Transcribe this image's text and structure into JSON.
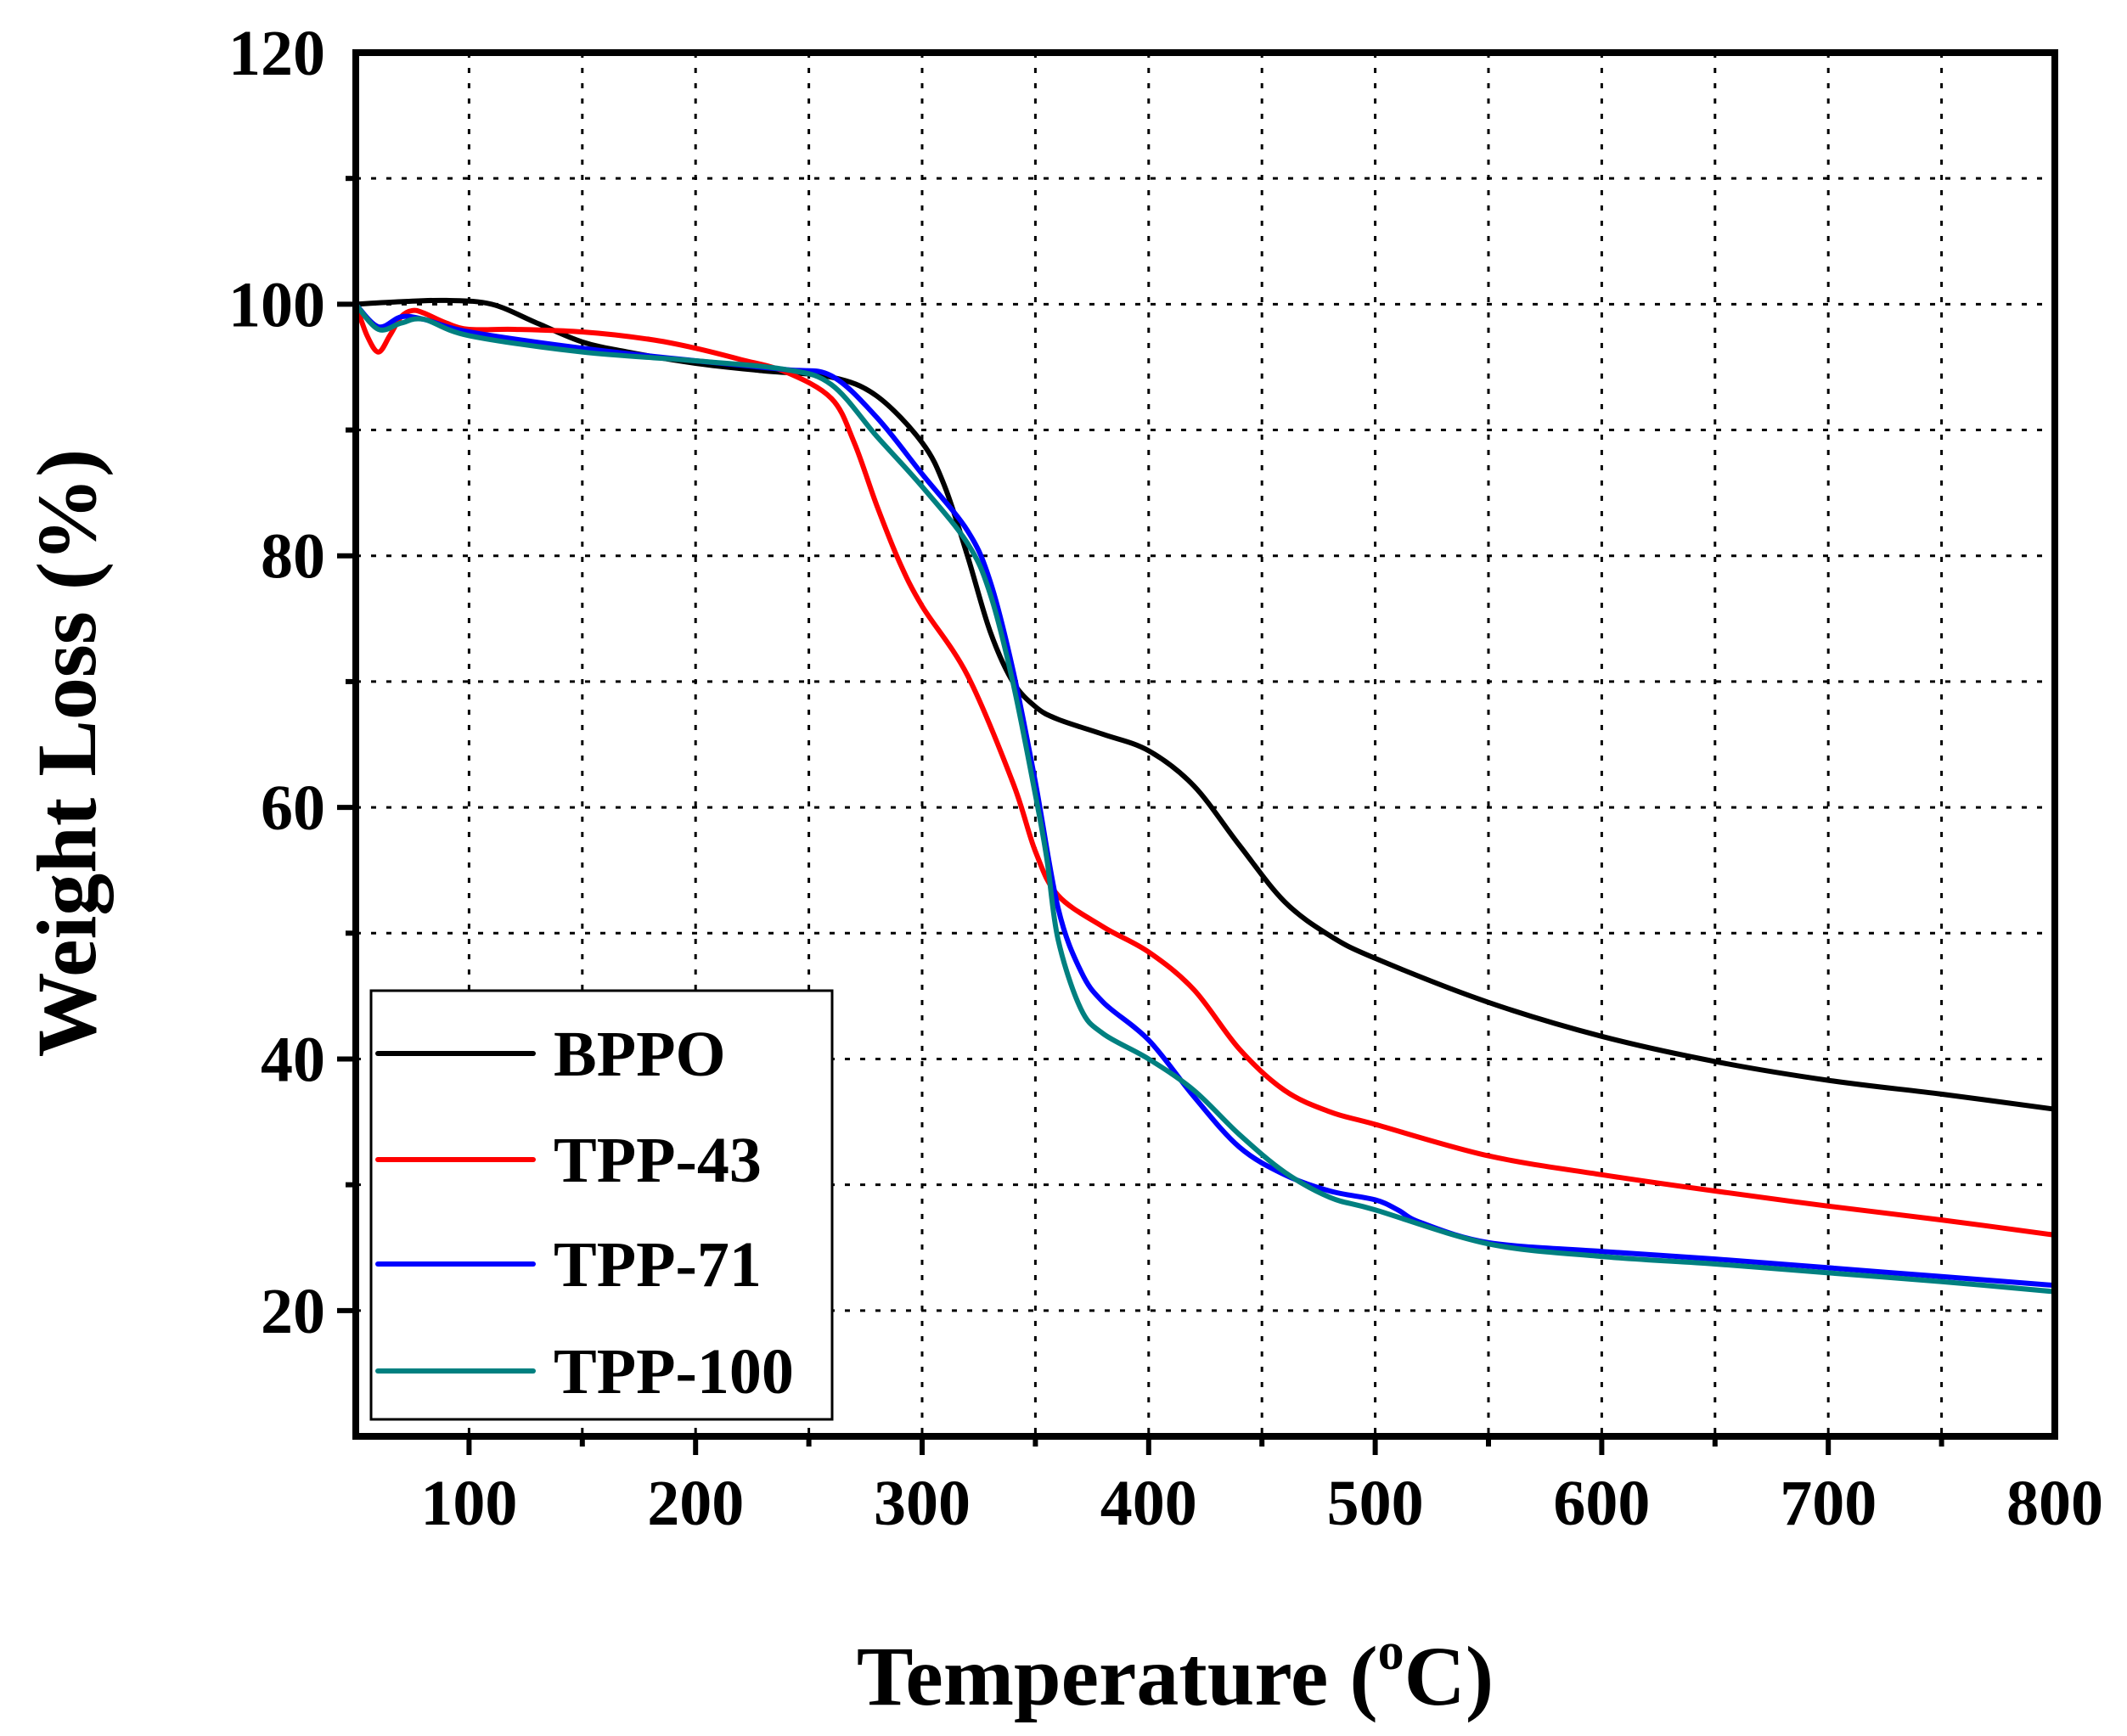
{
  "chart_data": {
    "type": "line",
    "title": "",
    "xlabel": "Temperature (",
    "xlabel_superscript": "o",
    "xlabel_unit": "C)",
    "ylabel": "Weight Loss (%)",
    "xlim": [
      50,
      800
    ],
    "ylim": [
      10,
      120
    ],
    "xticks": [
      100,
      200,
      300,
      400,
      500,
      600,
      700,
      800
    ],
    "yticks": [
      20,
      40,
      60,
      80,
      100,
      120
    ],
    "xtick_labels": [
      "100",
      "200",
      "300",
      "400",
      "500",
      "600",
      "700",
      "800"
    ],
    "ytick_labels": [
      "20",
      "40",
      "60",
      "80",
      "100",
      "120"
    ],
    "grid": true,
    "legend_position": "bottom-left",
    "series": [
      {
        "name": "BPPO",
        "color": "#000000",
        "x": [
          50,
          70,
          90,
          110,
          130,
          150,
          170,
          200,
          230,
          260,
          280,
          300,
          310,
          320,
          330,
          340,
          350,
          360,
          380,
          400,
          420,
          440,
          460,
          480,
          500,
          550,
          600,
          650,
          700,
          750,
          800
        ],
        "y": [
          100,
          100.2,
          100.3,
          100,
          98.5,
          97,
          96.2,
          95.3,
          94.7,
          94.2,
          92.7,
          89,
          85.5,
          80,
          74,
          70,
          68,
          67,
          65.8,
          64.5,
          61.7,
          57,
          52.5,
          49.8,
          48,
          44.5,
          41.8,
          39.8,
          38.3,
          37.2,
          36
        ]
      },
      {
        "name": "TPP-43",
        "color": "#ff0000",
        "x": [
          50,
          55,
          60,
          65,
          70,
          75,
          80,
          90,
          100,
          120,
          150,
          180,
          200,
          220,
          240,
          260,
          270,
          280,
          290,
          300,
          320,
          340,
          350,
          360,
          380,
          400,
          420,
          440,
          460,
          480,
          500,
          550,
          600,
          650,
          700,
          750,
          800
        ],
        "y": [
          100,
          97.5,
          96.2,
          97.5,
          99,
          99.5,
          99.3,
          98.5,
          98,
          98,
          97.8,
          97.2,
          96.5,
          95.6,
          94.6,
          92.5,
          89,
          84,
          79.5,
          76,
          70.5,
          62,
          56.5,
          53,
          50.5,
          48.5,
          45.5,
          40.8,
          37.5,
          35.8,
          34.8,
          32.3,
          30.8,
          29.5,
          28.3,
          27.2,
          26
        ]
      },
      {
        "name": "TPP-71",
        "color": "#0000ff",
        "x": [
          50,
          60,
          70,
          80,
          100,
          150,
          200,
          240,
          260,
          280,
          300,
          320,
          330,
          340,
          350,
          360,
          370,
          380,
          400,
          420,
          440,
          460,
          480,
          500,
          510,
          520,
          550,
          600,
          650,
          700,
          750,
          800
        ],
        "y": [
          100,
          98.2,
          99,
          98.8,
          97.8,
          96.5,
          95.5,
          94.8,
          94.3,
          91,
          86.5,
          82,
          78,
          71,
          62,
          52,
          47,
          44.5,
          41.5,
          37,
          33,
          30.8,
          29.5,
          28.8,
          28,
          27,
          25.4,
          24.7,
          24.1,
          23.4,
          22.7,
          22
        ]
      },
      {
        "name": "TPP-100",
        "color": "#008080",
        "x": [
          50,
          60,
          70,
          80,
          100,
          150,
          200,
          240,
          260,
          280,
          300,
          320,
          330,
          340,
          350,
          355,
          360,
          370,
          380,
          400,
          420,
          440,
          460,
          480,
          500,
          550,
          600,
          650,
          700,
          750,
          800
        ],
        "y": [
          100,
          98,
          98.5,
          98.8,
          97.5,
          96.2,
          95.5,
          94.8,
          93.6,
          89.5,
          85.5,
          81,
          77,
          70,
          61,
          56,
          49.5,
          44,
          42,
          40,
          37.5,
          34,
          31,
          29,
          28,
          25.3,
          24.3,
          23.7,
          23,
          22.3,
          21.5
        ]
      }
    ]
  }
}
